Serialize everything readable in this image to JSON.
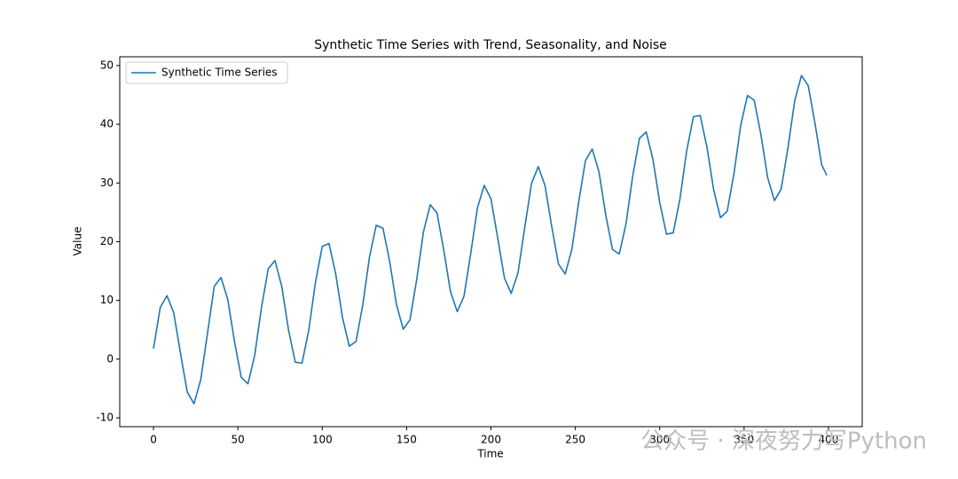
{
  "chart_data": {
    "type": "line",
    "title": "Synthetic Time Series with Trend, Seasonality, and Noise",
    "xlabel": "Time",
    "ylabel": "Value",
    "x": [
      0,
      4,
      8,
      12,
      16,
      20,
      24,
      28,
      32,
      36,
      40,
      44,
      48,
      52,
      56,
      60,
      64,
      68,
      72,
      76,
      80,
      84,
      88,
      92,
      96,
      100,
      104,
      108,
      112,
      116,
      120,
      124,
      128,
      132,
      136,
      140,
      144,
      148,
      152,
      156,
      160,
      164,
      168,
      172,
      176,
      180,
      184,
      188,
      192,
      196,
      200,
      204,
      208,
      212,
      216,
      220,
      224,
      228,
      232,
      236,
      240,
      244,
      248,
      252,
      256,
      260,
      264,
      268,
      272,
      276,
      280,
      284,
      288,
      292,
      296,
      300,
      304,
      308,
      312,
      316,
      320,
      324,
      328,
      332,
      336,
      340,
      344,
      348,
      352,
      356,
      360,
      364,
      368,
      372,
      376,
      380,
      384,
      388,
      392,
      396,
      399
    ],
    "series": [
      {
        "name": "Synthetic Time Series",
        "color": "#1f77b4",
        "values": [
          1.8,
          8.8,
          10.8,
          7.9,
          1.0,
          -5.6,
          -7.6,
          -3.5,
          4.4,
          12.4,
          13.9,
          10.2,
          3.0,
          -3.1,
          -4.2,
          0.7,
          8.8,
          15.4,
          16.8,
          12.4,
          5.0,
          -0.5,
          -0.7,
          4.9,
          13.1,
          19.2,
          19.7,
          14.5,
          7.1,
          2.2,
          3.0,
          9.2,
          17.4,
          22.8,
          22.3,
          16.6,
          9.3,
          5.1,
          6.7,
          13.6,
          21.7,
          26.3,
          24.9,
          18.6,
          11.5,
          8.1,
          10.7,
          18.0,
          25.8,
          29.6,
          27.3,
          20.6,
          13.8,
          11.2,
          14.7,
          22.4,
          29.9,
          32.8,
          29.6,
          22.6,
          16.2,
          14.5,
          18.8,
          26.8,
          33.8,
          35.8,
          31.9,
          24.6,
          18.7,
          17.9,
          23.0,
          31.2,
          37.6,
          38.7,
          34.0,
          26.7,
          21.3,
          21.5,
          27.3,
          35.5,
          41.3,
          41.5,
          36.1,
          28.8,
          24.1,
          25.2,
          31.6,
          39.8,
          44.9,
          44.1,
          38.2,
          30.9,
          27.0,
          29.0,
          36.0,
          44.0,
          48.3,
          46.6,
          40.2,
          33.1,
          31.3
        ]
      }
    ],
    "xlim": [
      -20,
      420
    ],
    "ylim": [
      -11.5,
      51.5
    ],
    "xticks": [
      0,
      50,
      100,
      150,
      200,
      250,
      300,
      350,
      400
    ],
    "yticks": [
      -10,
      0,
      10,
      20,
      30,
      40,
      50
    ],
    "legend": "upper left",
    "watermark": "公众号 · 深夜努力写Python"
  }
}
